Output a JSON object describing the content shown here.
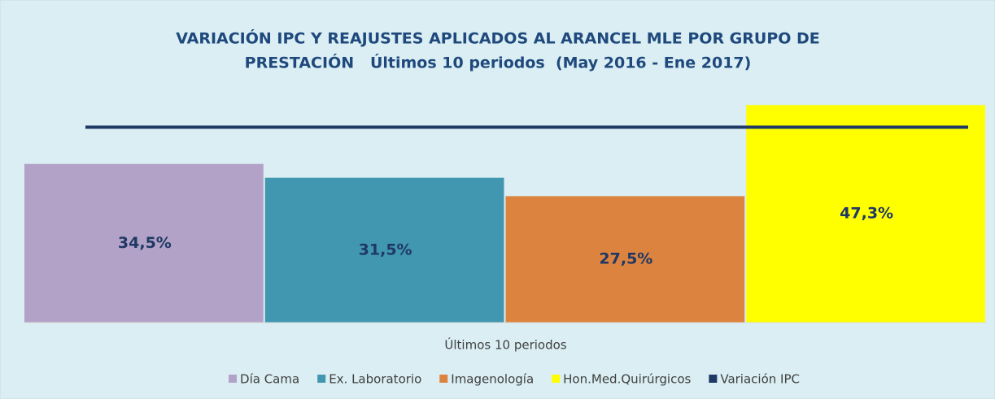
{
  "chart_data": {
    "type": "bar",
    "title": [
      "VARIACIÓN IPC Y REAJUSTES APLICADOS AL ARANCEL MLE POR GRUPO DE",
      "PRESTACIÓN   Últimos 10 periodos  (May 2016 - Ene 2017)"
    ],
    "categories": [
      "Últimos 10 periodos"
    ],
    "series": [
      {
        "name": "Día Cama",
        "color": "#b3a2c7",
        "values": [
          34.5
        ],
        "value_labels": [
          "34,5%"
        ]
      },
      {
        "name": "Ex. Laboratorio",
        "color": "#4197b0",
        "values": [
          31.5
        ],
        "value_labels": [
          "31,5%"
        ]
      },
      {
        "name": "Imagenología",
        "color": "#dc843f",
        "values": [
          27.5
        ],
        "value_labels": [
          "27,5%"
        ]
      },
      {
        "name": "Hon.Med.Quirúrgicos",
        "color": "#ffff00",
        "values": [
          47.3
        ],
        "value_labels": [
          "47,3%"
        ]
      },
      {
        "name": "Variación IPC",
        "color": "#1f3864",
        "type": "line",
        "values": [
          42.5
        ]
      },
      {
        "name": "",
        "skip": true
      }
    ],
    "ylim": [
      0,
      50
    ]
  }
}
